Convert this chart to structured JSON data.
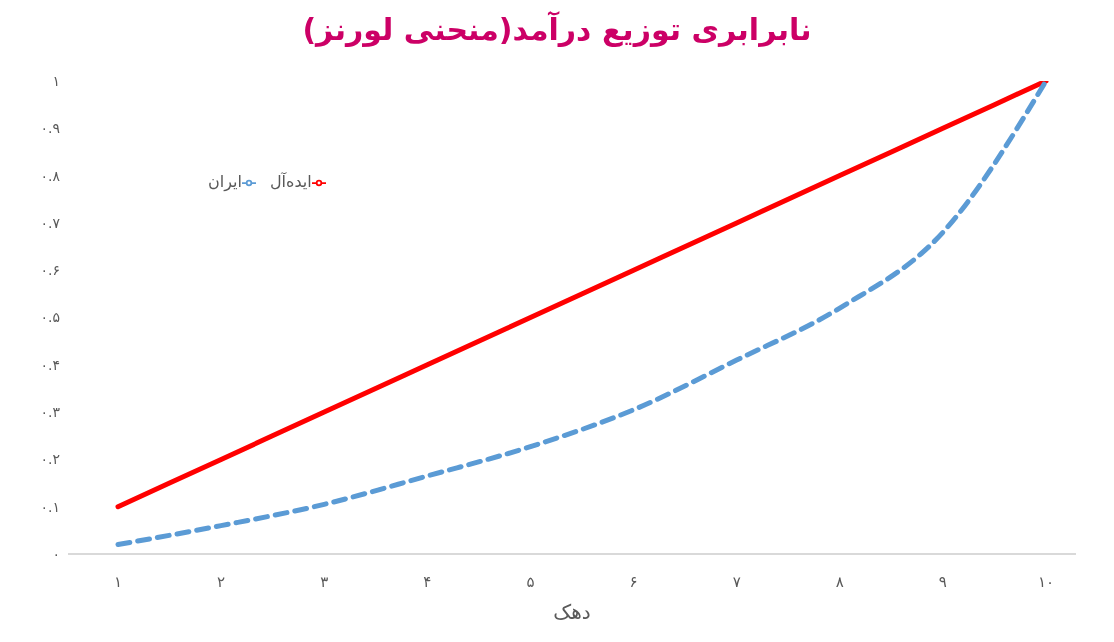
{
  "chart_data": {
    "type": "line",
    "title": "نابرابری توزیع درآمد(منحنی لورنز)",
    "xlabel": "دهک",
    "categories": [
      "۱",
      "۲",
      "۳",
      "۴",
      "۵",
      "۶",
      "۷",
      "۸",
      "۹",
      "۱۰"
    ],
    "series": [
      {
        "name": "ایده‌آل",
        "color": "#ff0000",
        "line_style": "solid",
        "values": [
          0.1,
          0.2,
          0.3,
          0.4,
          0.5,
          0.6,
          0.7,
          0.8,
          0.9,
          1
        ]
      },
      {
        "name": "ایران",
        "color": "#5b9bd5",
        "line_style": "dashed",
        "values": [
          0.02,
          0.06,
          0.105,
          0.165,
          0.227,
          0.305,
          0.41,
          0.52,
          0.68,
          1
        ]
      }
    ],
    "ylim": [
      0,
      1
    ],
    "yticks": [
      {
        "value": 0,
        "label": "۰"
      },
      {
        "value": 0.1,
        "label": "۰.۱"
      },
      {
        "value": 0.2,
        "label": "۰.۲"
      },
      {
        "value": 0.3,
        "label": "۰.۳"
      },
      {
        "value": 0.4,
        "label": "۰.۴"
      },
      {
        "value": 0.5,
        "label": "۰.۵"
      },
      {
        "value": 0.6,
        "label": "۰.۶"
      },
      {
        "value": 0.7,
        "label": "۰.۷"
      },
      {
        "value": 0.8,
        "label": "۰.۸"
      },
      {
        "value": 0.9,
        "label": "۰.۹"
      },
      {
        "value": 1,
        "label": "۱"
      }
    ],
    "grid": false,
    "legend": "top left",
    "marker": "none"
  }
}
